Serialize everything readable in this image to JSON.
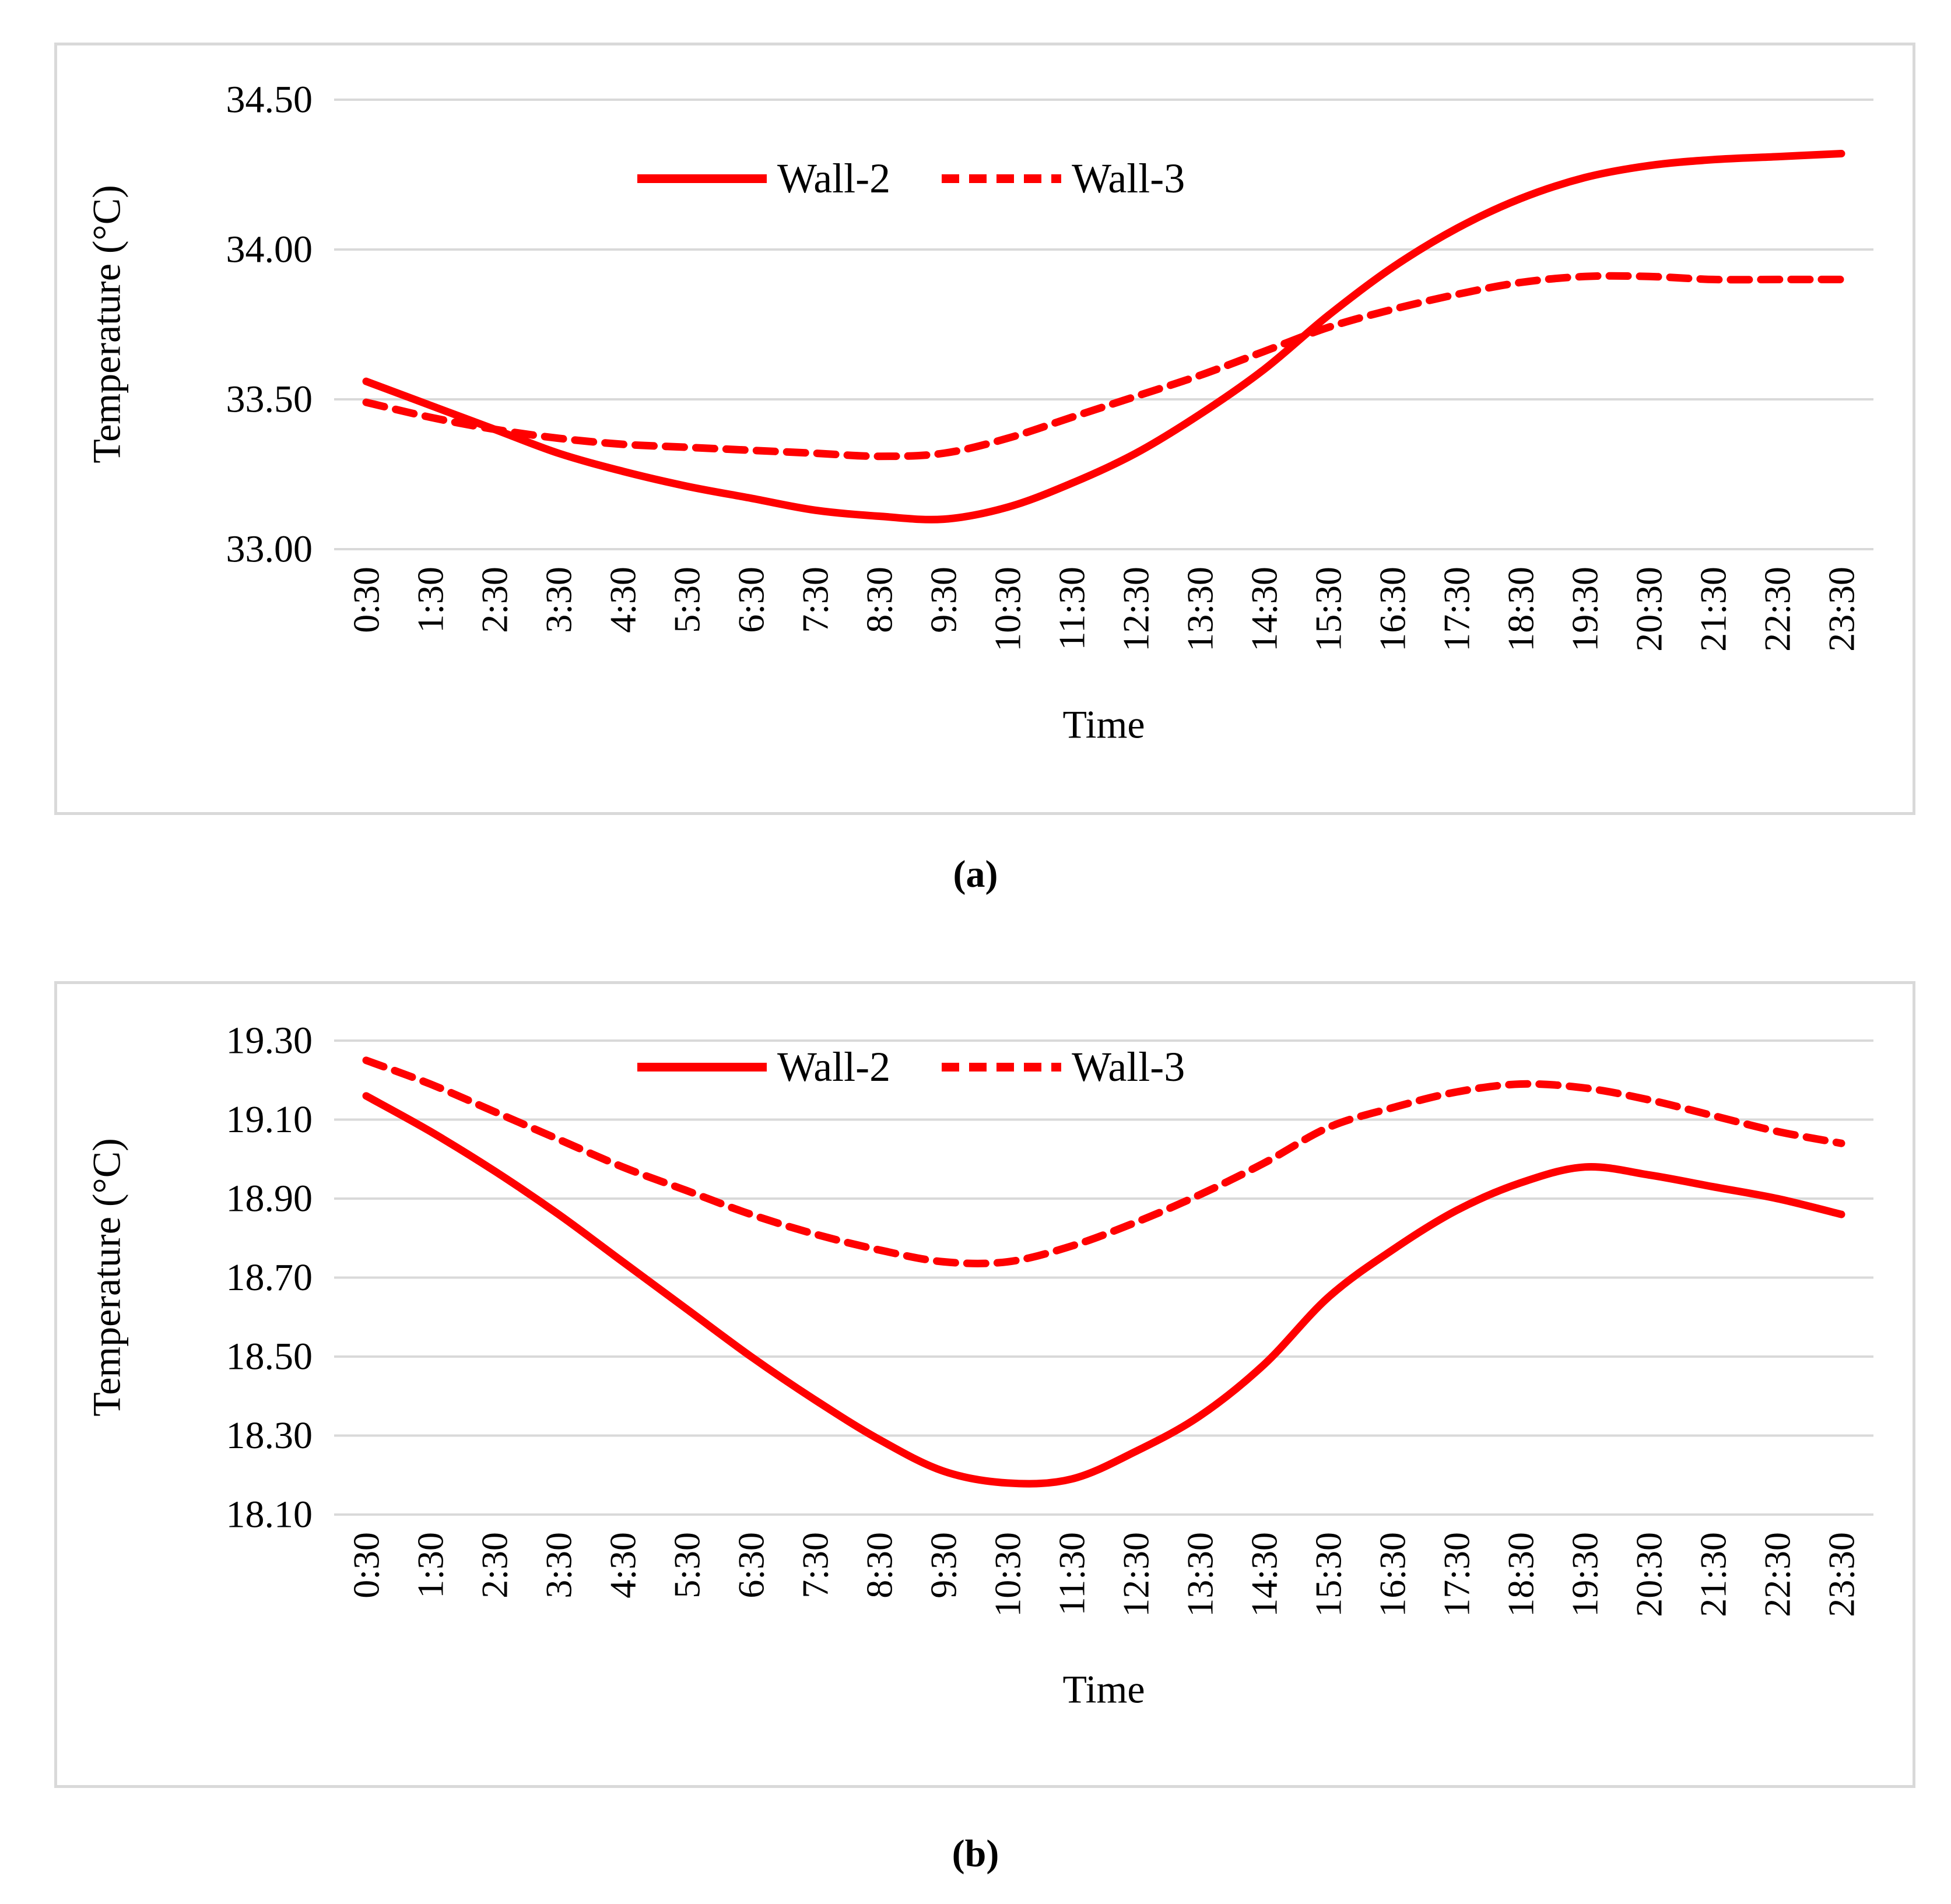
{
  "figure": {
    "captions": {
      "a": "(a)",
      "b": "(b)"
    },
    "colors": {
      "line": "#FF0000",
      "grid": "#D9D9D9",
      "panel_border": "#D9D9D9",
      "text": "#000000",
      "background": "#FFFFFF"
    }
  },
  "chart_data": [
    {
      "type": "line",
      "panel": "a",
      "title": "(a)",
      "xlabel": "Time",
      "ylabel": "Temperature (°C)",
      "ylim": [
        33.0,
        34.5
      ],
      "y_ticks": [
        "34.50",
        "34.00",
        "33.50",
        "33.00"
      ],
      "grid": true,
      "legend_position": "top-center-inside",
      "line_color": "#FF0000",
      "categories": [
        "0:30",
        "1:30",
        "2:30",
        "3:30",
        "4:30",
        "5:30",
        "6:30",
        "7:30",
        "8:30",
        "9:30",
        "10:30",
        "11:30",
        "12:30",
        "13:30",
        "14:30",
        "15:30",
        "16:30",
        "17:30",
        "18:30",
        "19:30",
        "20:30",
        "21:30",
        "22:30",
        "23:30"
      ],
      "series": [
        {
          "name": "Wall-2",
          "style": "solid",
          "values": [
            33.56,
            33.48,
            33.4,
            33.32,
            33.26,
            33.21,
            33.17,
            33.13,
            33.11,
            33.1,
            33.14,
            33.22,
            33.32,
            33.45,
            33.6,
            33.78,
            33.94,
            34.07,
            34.17,
            34.24,
            34.28,
            34.3,
            34.31,
            34.32
          ]
        },
        {
          "name": "Wall-3",
          "style": "dashed",
          "values": [
            33.49,
            33.44,
            33.4,
            33.37,
            33.35,
            33.34,
            33.33,
            33.32,
            33.31,
            33.32,
            33.37,
            33.44,
            33.51,
            33.58,
            33.66,
            33.74,
            33.8,
            33.85,
            33.89,
            33.91,
            33.91,
            33.9,
            33.9,
            33.9
          ]
        }
      ]
    },
    {
      "type": "line",
      "panel": "b",
      "title": "(b)",
      "xlabel": "Time",
      "ylabel": "Temperature (°C)",
      "ylim": [
        18.1,
        19.3
      ],
      "y_ticks": [
        "19.30",
        "19.10",
        "18.90",
        "18.70",
        "18.50",
        "18.30",
        "18.10"
      ],
      "grid": true,
      "legend_position": "top-center-inside",
      "line_color": "#FF0000",
      "categories": [
        "0:30",
        "1:30",
        "2:30",
        "3:30",
        "4:30",
        "5:30",
        "6:30",
        "7:30",
        "8:30",
        "9:30",
        "10:30",
        "11:30",
        "12:30",
        "13:30",
        "14:30",
        "15:30",
        "16:30",
        "17:30",
        "18:30",
        "19:30",
        "20:30",
        "21:30",
        "22:30",
        "23:30"
      ],
      "series": [
        {
          "name": "Wall-2",
          "style": "solid",
          "values": [
            19.16,
            19.07,
            18.97,
            18.86,
            18.74,
            18.62,
            18.5,
            18.39,
            18.29,
            18.21,
            18.18,
            18.19,
            18.26,
            18.35,
            18.48,
            18.65,
            18.77,
            18.87,
            18.94,
            18.98,
            18.96,
            18.93,
            18.9,
            18.86
          ]
        },
        {
          "name": "Wall-3",
          "style": "dashed",
          "values": [
            19.25,
            19.19,
            19.12,
            19.05,
            18.98,
            18.92,
            18.86,
            18.81,
            18.77,
            18.74,
            18.74,
            18.78,
            18.84,
            18.91,
            18.99,
            19.08,
            19.13,
            19.17,
            19.19,
            19.18,
            19.15,
            19.11,
            19.07,
            19.04
          ]
        }
      ]
    }
  ]
}
